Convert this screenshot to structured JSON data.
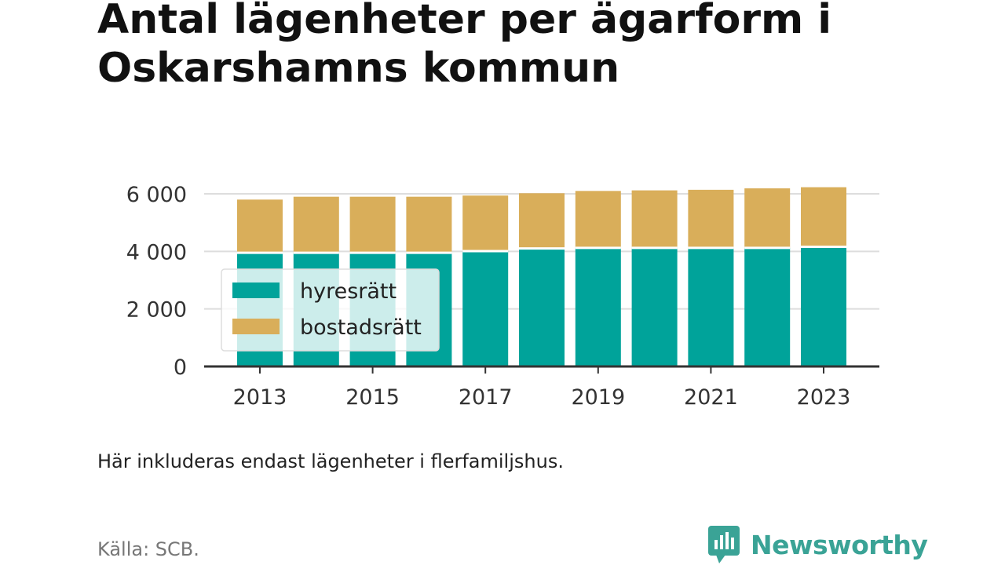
{
  "title_lines": [
    "Antal lägenheter per ägarform i",
    "Oskarshamns kommun"
  ],
  "note": "Här inkluderas endast lägenheter i flerfamiljshus.",
  "source": "Källa: SCB.",
  "brand": {
    "name": "Newsworthy",
    "icon": "newsworthy-logo-icon",
    "color": "#3aa396"
  },
  "chart_data": {
    "type": "bar",
    "stacked": true,
    "categories": [
      2013,
      2014,
      2015,
      2016,
      2017,
      2018,
      2019,
      2020,
      2021,
      2022,
      2023
    ],
    "x_tick_labels": [
      "2013",
      "2015",
      "2017",
      "2019",
      "2021",
      "2023"
    ],
    "y_ticks": [
      0,
      2000,
      4000,
      6000
    ],
    "y_tick_labels": [
      "0",
      "2 000",
      "4 000",
      "6 000"
    ],
    "ylim": [
      0,
      6000
    ],
    "grid": true,
    "legend_position": "left-center",
    "series": [
      {
        "name": "hyresrätt",
        "color": "#00a39a",
        "values": [
          3950,
          3950,
          3950,
          3950,
          4010,
          4100,
          4120,
          4120,
          4120,
          4120,
          4160
        ]
      },
      {
        "name": "bostadsrätt",
        "color": "#d9ae5a",
        "values": [
          1850,
          1950,
          1950,
          1950,
          1930,
          1920,
          1980,
          2000,
          2020,
          2070,
          2070
        ]
      }
    ]
  }
}
